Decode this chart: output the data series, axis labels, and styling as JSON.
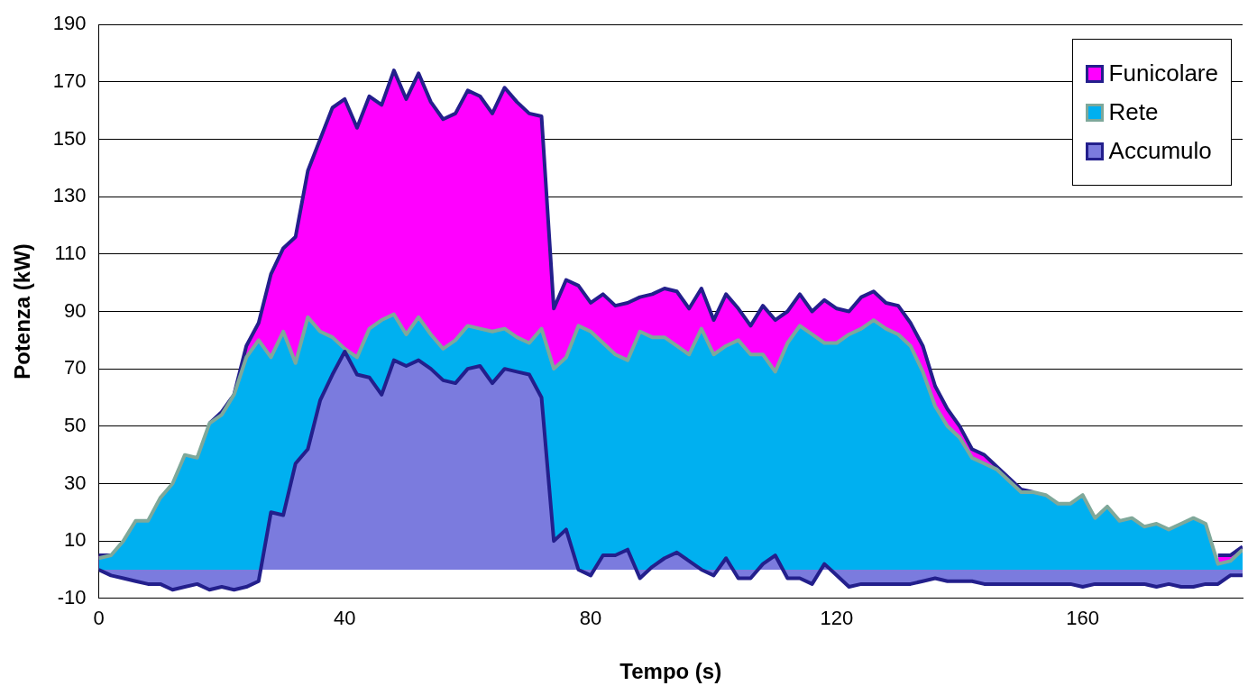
{
  "chart_data": {
    "type": "area",
    "xlabel": "Tempo (s)",
    "ylabel": "Potenza (kW)",
    "x": [
      0,
      2,
      4,
      6,
      8,
      10,
      12,
      14,
      16,
      18,
      20,
      22,
      24,
      26,
      28,
      30,
      32,
      34,
      36,
      38,
      40,
      42,
      44,
      46,
      48,
      50,
      52,
      54,
      56,
      58,
      60,
      62,
      64,
      66,
      68,
      70,
      72,
      74,
      76,
      78,
      80,
      82,
      84,
      86,
      88,
      90,
      92,
      94,
      96,
      98,
      100,
      102,
      104,
      106,
      108,
      110,
      112,
      114,
      116,
      118,
      120,
      122,
      124,
      126,
      128,
      130,
      132,
      134,
      136,
      138,
      140,
      142,
      144,
      146,
      148,
      150,
      152,
      154,
      156,
      158,
      160,
      162,
      164,
      166,
      168,
      170,
      172,
      174,
      176,
      178,
      180,
      182,
      184,
      186
    ],
    "series": [
      {
        "name": "Funicolare",
        "color": "#ff00ff",
        "values": [
          5,
          5,
          null,
          null,
          null,
          null,
          null,
          null,
          null,
          51,
          55,
          61,
          78,
          86,
          103,
          112,
          116,
          139,
          150,
          161,
          164,
          154,
          165,
          162,
          174,
          164,
          173,
          163,
          157,
          159,
          167,
          165,
          159,
          168,
          163,
          159,
          158,
          91,
          101,
          99,
          93,
          96,
          92,
          93,
          95,
          96,
          98,
          97,
          91,
          98,
          87,
          96,
          91,
          85,
          92,
          87,
          90,
          96,
          90,
          94,
          91,
          90,
          95,
          97,
          93,
          92,
          86,
          78,
          64,
          56,
          50,
          42,
          40,
          36,
          32,
          28,
          27,
          null,
          null,
          null,
          null,
          null,
          null,
          null,
          null,
          null,
          null,
          null,
          null,
          null,
          null,
          5,
          5,
          8
        ]
      },
      {
        "name": "Rete",
        "color": "#00b0f0",
        "values": [
          4,
          5,
          10,
          17,
          17,
          25,
          30,
          40,
          39,
          51,
          54,
          61,
          74,
          80,
          74,
          83,
          72,
          88,
          83,
          81,
          77,
          74,
          84,
          87,
          89,
          82,
          88,
          82,
          77,
          80,
          85,
          84,
          83,
          84,
          81,
          79,
          84,
          70,
          74,
          85,
          83,
          79,
          75,
          73,
          83,
          81,
          81,
          78,
          75,
          84,
          75,
          78,
          80,
          75,
          75,
          69,
          79,
          85,
          82,
          79,
          79,
          82,
          84,
          87,
          84,
          82,
          78,
          69,
          57,
          50,
          46,
          39,
          37,
          35,
          31,
          27,
          27,
          26,
          23,
          23,
          26,
          18,
          22,
          17,
          18,
          15,
          16,
          14,
          16,
          18,
          16,
          2,
          3,
          7
        ]
      },
      {
        "name": "Accumulo",
        "color": "#7b7bde",
        "values": [
          0,
          -2,
          -3,
          -4,
          -5,
          -5,
          -7,
          -6,
          -5,
          -7,
          -6,
          -7,
          -6,
          -4,
          20,
          19,
          37,
          42,
          59,
          68,
          76,
          68,
          67,
          61,
          73,
          71,
          73,
          70,
          66,
          65,
          70,
          71,
          65,
          70,
          69,
          68,
          60,
          10,
          14,
          0,
          -2,
          5,
          5,
          7,
          -3,
          1,
          4,
          6,
          3,
          0,
          -2,
          4,
          -3,
          -3,
          2,
          5,
          -3,
          -3,
          -5,
          2,
          -2,
          -6,
          -5,
          -5,
          -5,
          -5,
          -5,
          -4,
          -3,
          -4,
          -4,
          -4,
          -5,
          -5,
          -5,
          -5,
          -5,
          -5,
          -5,
          -5,
          -6,
          -5,
          -5,
          -5,
          -5,
          -5,
          -6,
          -5,
          -6,
          -6,
          -5,
          -5,
          -2,
          -2
        ]
      }
    ],
    "xlim": [
      0,
      186
    ],
    "xticks": [
      0,
      40,
      80,
      120,
      160
    ],
    "ylim": [
      -10,
      190
    ],
    "yticks": [
      -10,
      10,
      30,
      50,
      70,
      90,
      110,
      130,
      150,
      170,
      190
    ],
    "grid": "y",
    "legend": "top right",
    "marker": "none",
    "line_style": "solid"
  }
}
